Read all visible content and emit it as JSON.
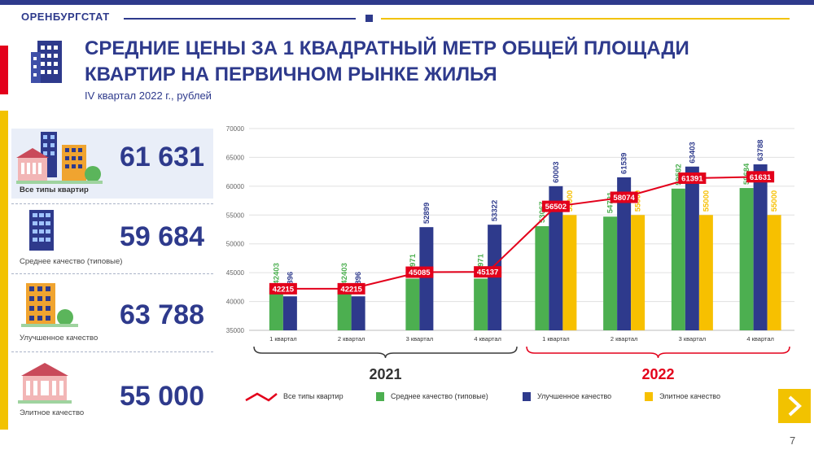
{
  "header": {
    "org": "ОРЕНБУРГСТАТ"
  },
  "title": {
    "line1": "СРЕДНИЕ ЦЕНЫ ЗА 1 КВАДРАТНЫЙ МЕТР ОБЩЕЙ ПЛОЩАДИ",
    "line2": "КВАРТИР НА ПЕРВИЧНОМ РЫНКЕ ЖИЛЬЯ",
    "subtitle": "IV квартал 2022 г., рублей"
  },
  "panels": [
    {
      "value": "61 631",
      "label": "Все типы квартир",
      "icon": "city-buildings-icon"
    },
    {
      "value": "59 684",
      "label": "Среднее качество (типовые)",
      "icon": "blue-apartment-icon"
    },
    {
      "value": "63 788",
      "label": "Улучшенное качество",
      "icon": "orange-apartment-icon"
    },
    {
      "value": "55 000",
      "label": "Элитное качество",
      "icon": "palace-icon"
    }
  ],
  "colors": {
    "navy": "#2e3a8c",
    "green": "#4caf50",
    "gold": "#f7c000",
    "red": "#e3001b"
  },
  "chart_data": {
    "type": "bar",
    "categories": [
      "1 квартал",
      "2 квартал",
      "3 квартал",
      "4 квартал",
      "1 квартал",
      "2 квартал",
      "3 квартал",
      "4 квартал"
    ],
    "groups": [
      {
        "label": "2021",
        "from": 0,
        "to": 3,
        "color": "#3a3a3a"
      },
      {
        "label": "2022",
        "from": 4,
        "to": 7,
        "color": "#e3001b"
      }
    ],
    "ylim": [
      35000,
      70000
    ],
    "yticks": [
      35000,
      40000,
      45000,
      50000,
      55000,
      60000,
      65000,
      70000
    ],
    "series": [
      {
        "name": "Среднее качество (типовые)",
        "type": "bar",
        "color": "#4caf50",
        "values": [
          42403,
          42403,
          43971,
          43971,
          53067,
          54721,
          59582,
          59684
        ]
      },
      {
        "name": "Улучшенное качество",
        "type": "bar",
        "color": "#2e3a8c",
        "values": [
          40896,
          40896,
          52899,
          53322,
          60003,
          61539,
          63403,
          63788
        ]
      },
      {
        "name": "Элитное качество",
        "type": "bar",
        "color": "#f7c000",
        "values": [
          null,
          null,
          null,
          null,
          55000,
          55000,
          55000,
          55000
        ]
      },
      {
        "name": "Все типы квартир",
        "type": "line",
        "color": "#e3001b",
        "values": [
          42215,
          42215,
          45085,
          45137,
          56502,
          58074,
          61391,
          61631
        ]
      }
    ]
  },
  "footer": {
    "page": "7"
  }
}
